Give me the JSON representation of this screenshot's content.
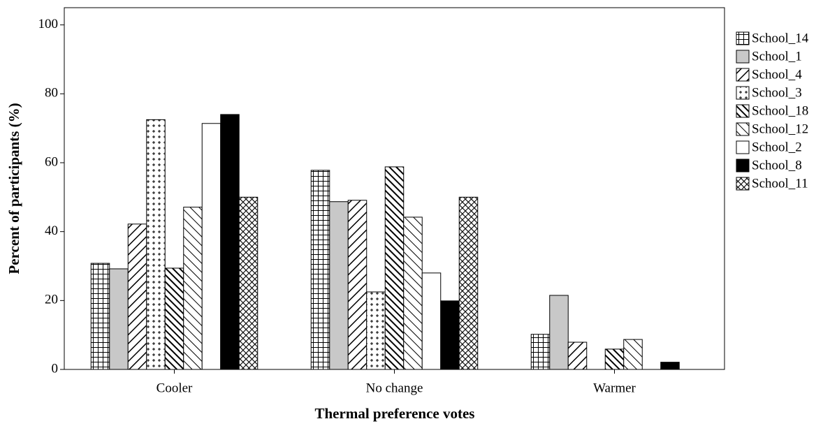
{
  "chart_data": {
    "type": "bar",
    "x_label": "Thermal preference votes",
    "y_label": "Percent of participants (%)",
    "categories": [
      "Cooler",
      "No change",
      "Warmer"
    ],
    "ylim": [
      0,
      105
    ],
    "yticks": [
      0,
      20,
      40,
      60,
      80,
      100
    ],
    "series": [
      {
        "name": "School_14",
        "color": "#ffffff",
        "pattern": "grid",
        "values": [
          30.8,
          57.8,
          10.2
        ]
      },
      {
        "name": "School_1",
        "color": "#c8c8c8",
        "pattern": "solid",
        "values": [
          29.2,
          48.7,
          21.5
        ]
      },
      {
        "name": "School_4",
        "color": "#ffffff",
        "pattern": "diagonal",
        "values": [
          42.2,
          49.1,
          7.9
        ]
      },
      {
        "name": "School_3",
        "color": "#ffffff",
        "pattern": "plus",
        "values": [
          72.5,
          22.5,
          0
        ]
      },
      {
        "name": "School_18",
        "color": "#ffffff",
        "pattern": "back-diagonal-thick",
        "values": [
          29.4,
          58.8,
          5.9
        ]
      },
      {
        "name": "School_12",
        "color": "#ffffff",
        "pattern": "back-diagonal",
        "values": [
          47.1,
          44.2,
          8.7
        ]
      },
      {
        "name": "School_2",
        "color": "#ffffff",
        "pattern": "solid",
        "values": [
          71.4,
          28.0,
          0
        ]
      },
      {
        "name": "School_8",
        "color": "#000000",
        "pattern": "solid",
        "values": [
          74.0,
          19.9,
          2.1
        ]
      },
      {
        "name": "School_11",
        "color": "#ffffff",
        "pattern": "crosshatch",
        "values": [
          50.0,
          50.0,
          0
        ]
      }
    ]
  }
}
